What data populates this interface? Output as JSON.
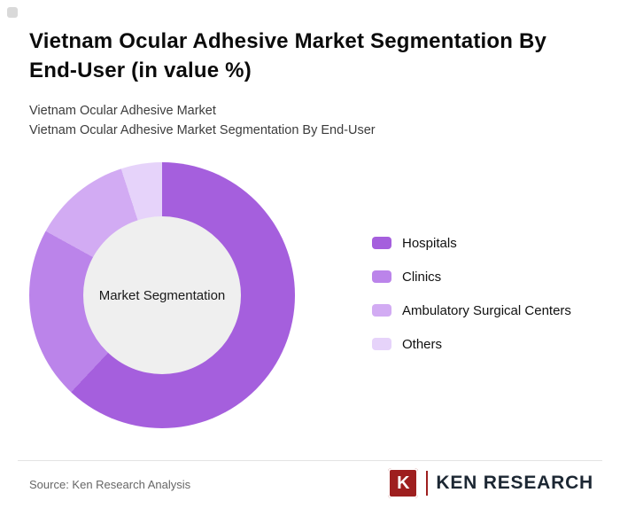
{
  "page": {
    "title": "Vietnam Ocular Adhesive Market Segmentation By End-User (in value %)",
    "subtitle_line1": "Vietnam Ocular Adhesive Market",
    "subtitle_line2": "Vietnam Ocular Adhesive Market Segmentation By End-User"
  },
  "chart_data": {
    "type": "pie",
    "donut": true,
    "title": "Vietnam Ocular Adhesive Market Segmentation By End-User (in value %)",
    "center_label": "Market Segmentation",
    "legend_position": "right",
    "start_angle_deg": 0,
    "hole_color": "#efefef",
    "segments": [
      {
        "label": "Hospitals",
        "value": 62,
        "color": "#a55fdd"
      },
      {
        "label": "Clinics",
        "value": 21,
        "color": "#bb84ea"
      },
      {
        "label": "Ambulatory Surgical Centers",
        "value": 12,
        "color": "#d2abf3"
      },
      {
        "label": "Others",
        "value": 5,
        "color": "#e6d3fa"
      }
    ]
  },
  "footer": {
    "source": "Source: Ken Research Analysis",
    "logo": {
      "emblem_letter": "K",
      "brand": "KEN RESEARCH",
      "accent_color": "#9e1f1f"
    }
  }
}
